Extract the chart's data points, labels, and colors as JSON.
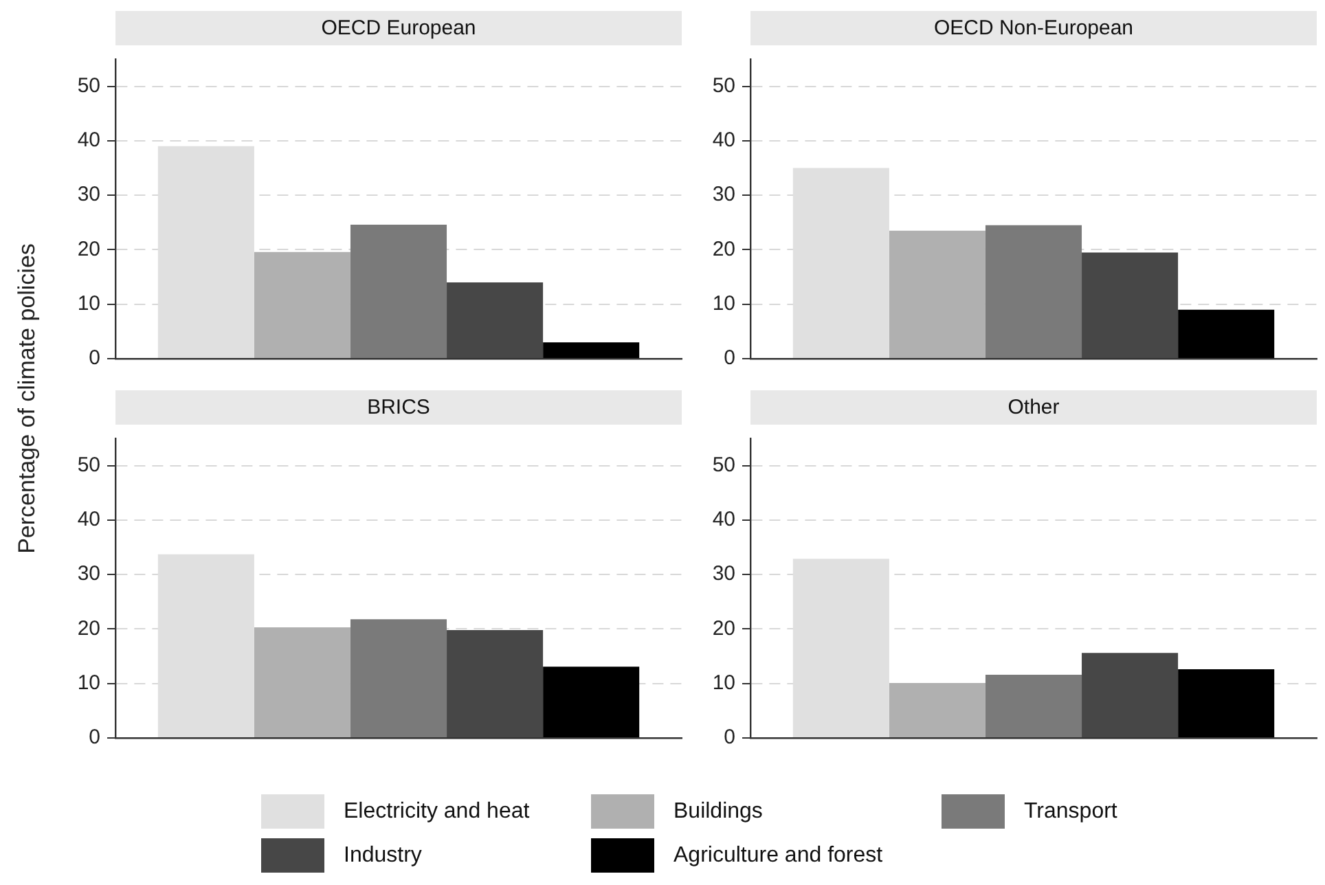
{
  "chart_data": [
    {
      "type": "bar",
      "title": "OECD European",
      "ylabel": "Percentage of climate policies",
      "categories": [
        null
      ],
      "ylim": [
        0,
        55
      ],
      "yticks": [
        0,
        10,
        20,
        30,
        40,
        50
      ],
      "grid": "y",
      "tick_labels": "y",
      "series": [
        {
          "color": "#e0e0e0",
          "values": [
            39
          ]
        },
        {
          "color": "#b0b0b0",
          "values": [
            19.6
          ]
        },
        {
          "color": "#7a7a7a",
          "values": [
            24.6
          ]
        },
        {
          "color": "#474747",
          "values": [
            14
          ]
        },
        {
          "color": "#000000",
          "values": [
            3
          ]
        }
      ]
    },
    {
      "type": "bar",
      "title": "OECD Non-European",
      "categories": [
        null
      ],
      "ylim": [
        0,
        55
      ],
      "yticks": [
        0,
        10,
        20,
        30,
        40,
        50
      ],
      "grid": "y",
      "tick_labels": "y",
      "series": [
        {
          "color": "#e0e0e0",
          "values": [
            35
          ]
        },
        {
          "color": "#b0b0b0",
          "values": [
            23.5
          ]
        },
        {
          "color": "#7a7a7a",
          "values": [
            24.5
          ]
        },
        {
          "color": "#474747",
          "values": [
            19.5
          ]
        },
        {
          "color": "#000000",
          "values": [
            9
          ]
        }
      ]
    },
    {
      "type": "bar",
      "title": "BRICS",
      "categories": [
        null
      ],
      "ylim": [
        0,
        55
      ],
      "yticks": [
        0,
        10,
        20,
        30,
        40,
        50
      ],
      "grid": "y",
      "tick_labels": "y",
      "series": [
        {
          "color": "#e0e0e0",
          "values": [
            33.7
          ]
        },
        {
          "color": "#b0b0b0",
          "values": [
            20.3
          ]
        },
        {
          "color": "#7a7a7a",
          "values": [
            21.8
          ]
        },
        {
          "color": "#474747",
          "values": [
            19.8
          ]
        },
        {
          "color": "#000000",
          "values": [
            13.1
          ]
        }
      ]
    },
    {
      "type": "bar",
      "title": "Other",
      "categories": [
        null
      ],
      "ylim": [
        0,
        55
      ],
      "yticks": [
        0,
        10,
        20,
        30,
        40,
        50
      ],
      "grid": "y",
      "tick_labels": "y",
      "legend": "bottom",
      "series": [
        {
          "name": "Electricity and heat",
          "color": "#e0e0e0",
          "values": [
            32.9
          ]
        },
        {
          "name": "Buildings",
          "color": "#b0b0b0",
          "values": [
            10.1
          ]
        },
        {
          "name": "Transport",
          "color": "#7a7a7a",
          "values": [
            11.6
          ]
        },
        {
          "name": "Industry",
          "color": "#474747",
          "values": [
            15.6
          ]
        },
        {
          "name": "Agriculture and forest",
          "color": "#000000",
          "values": [
            12.6
          ]
        }
      ]
    }
  ]
}
